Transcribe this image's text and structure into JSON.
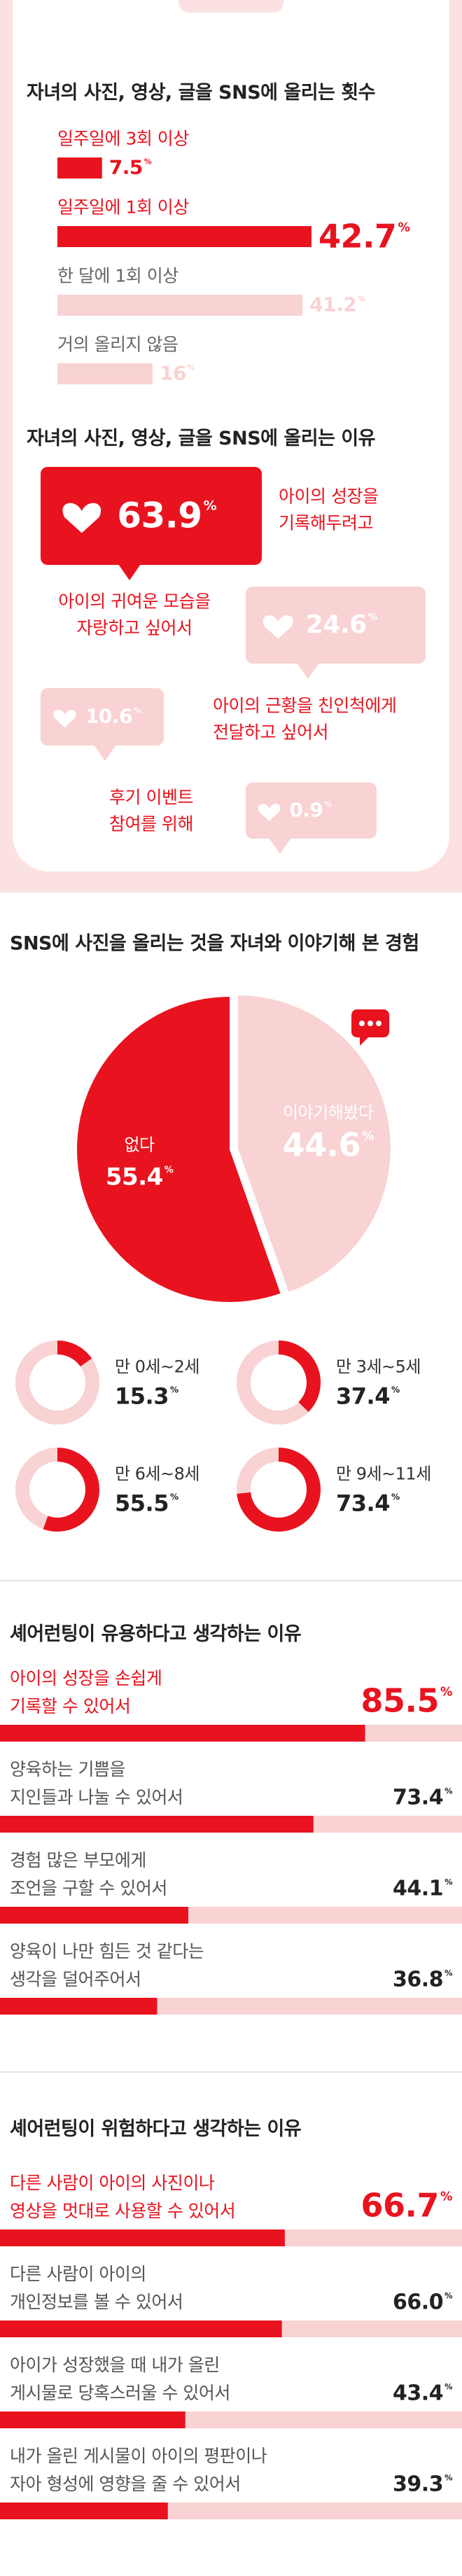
{
  "chart_data": [
    {
      "type": "bar",
      "title": "자녀의 사진, 영상, 글을 SNS에 올리는 횟수",
      "categories": [
        "일주일에 3회 이상",
        "일주일에 1회 이상",
        "한 달에 1회 이상",
        "거의 올리지 않음"
      ],
      "values": [
        7.5,
        42.7,
        41.2,
        16
      ],
      "value_labels": [
        "7.5%",
        "42.7%",
        "41.2%",
        "16%"
      ],
      "colors": [
        "#e8131e",
        "#e8131e",
        "#f9d2d3",
        "#f9d2d3"
      ],
      "label_colors": [
        "#e8131e",
        "#e8131e",
        "#666666",
        "#666666"
      ]
    },
    {
      "type": "callout",
      "title": "자녀의 사진, 영상, 글을 SNS에 올리는 이유",
      "categories": [
        "아이의 성장을\n기록해두려고",
        "아이의 귀여운 모습을\n자랑하고 싶어서",
        "아이의 근황을 친인척에게\n전달하고 싶어서",
        "후기 이벤트\n참여를 위해"
      ],
      "values": [
        63.9,
        24.6,
        10.6,
        0.9
      ],
      "value_labels": [
        "63.9%",
        "24.6%",
        "10.6%",
        "0.9%"
      ],
      "colors": [
        "#e8131e",
        "#f9d2d3",
        "#f9d2d3",
        "#f9d2d3"
      ]
    },
    {
      "type": "pie",
      "title": "SNS에 사진을 올리는 것을 자녀와 이야기해 본 경험",
      "categories": [
        "없다",
        "이야기해봤다"
      ],
      "values": [
        55.4,
        44.6
      ],
      "value_labels": [
        "55.4%",
        "44.6%"
      ],
      "colors": [
        "#e8131e",
        "#f9d2d3"
      ]
    },
    {
      "type": "donut",
      "categories": [
        "만 0세~2세",
        "만 3세~5세",
        "만 6세~8세",
        "만 9세~11세"
      ],
      "values": [
        15.3,
        37.4,
        55.5,
        73.4
      ],
      "value_labels": [
        "15.3%",
        "37.4%",
        "55.5%",
        "73.4%"
      ],
      "color": "#e8131e",
      "track_color": "#f9d2d3"
    },
    {
      "type": "progress",
      "title": "셰어런팅이 유용하다고 생각하는 이유",
      "categories": [
        "아이의 성장을 손쉽게\n기록할 수 있어서",
        "양육하는 기쁨을\n지인들과 나눌 수 있어서",
        "경험 많은 부모에게\n조언을 구할 수 있어서",
        "양육이 나만 힘든 것 같다는\n생각을 덜어주어서"
      ],
      "values": [
        85.5,
        73.4,
        44.1,
        36.8
      ],
      "value_labels": [
        "85.5%",
        "73.4%",
        "44.1%",
        "36.8%"
      ],
      "color": "#e8131e",
      "track_color": "#f9d2d3",
      "highlight": 0
    },
    {
      "type": "progress",
      "title": "셰어런팅이 위험하다고 생각하는 이유",
      "categories": [
        "다른 사람이 아이의 사진이나\n영상을 멋대로 사용할 수 있어서",
        "다른 사람이 아이의\n개인정보를 볼 수 있어서",
        "아이가 성장했을 때 내가 올린\n게시물로 당혹스러울 수 있어서",
        "내가 올린 게시물이 아이의 평판이나\n자아 형성에 영향을 줄 수 있어서"
      ],
      "values": [
        66.7,
        66.0,
        43.4,
        39.3
      ],
      "value_labels": [
        "66.7%",
        "66.0%",
        "43.4%",
        "39.3%"
      ],
      "color": "#e8131e",
      "track_color": "#f9d2d3",
      "highlight": 0
    }
  ]
}
